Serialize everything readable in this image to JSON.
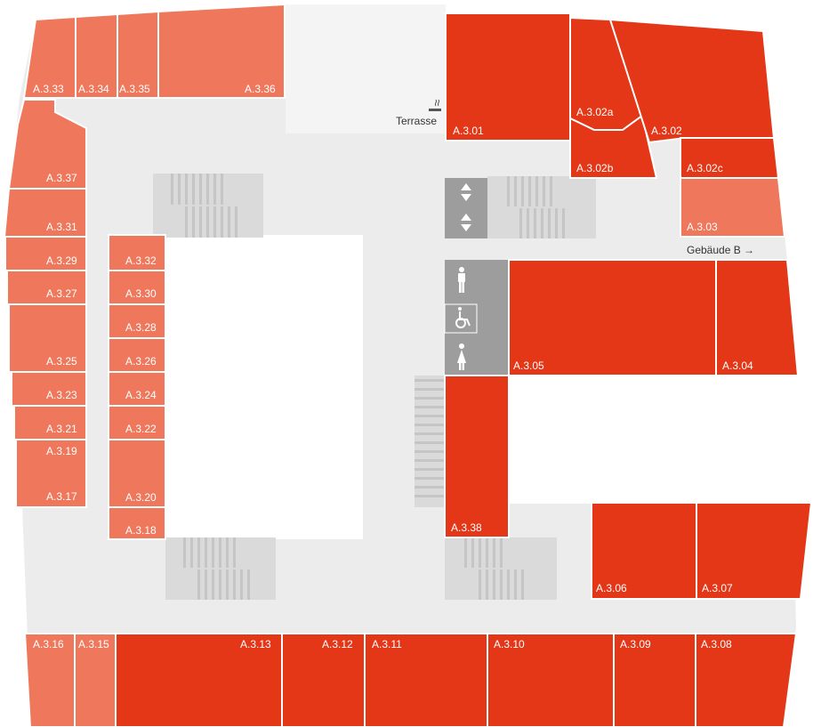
{
  "colors": {
    "corridor": "#ececec",
    "room_light": "#ef775b",
    "room_dark": "#e33718",
    "terrace": "#f4f4f4",
    "stair": "#dadada",
    "stair_step": "#c5c5c5",
    "service": "#9d9d9d",
    "courtyard": "#ffffff"
  },
  "rooms": {
    "a333": "A.3.33",
    "a334": "A.3.34",
    "a335": "A.3.35",
    "a336": "A.3.36",
    "a337": "A.3.37",
    "a331": "A.3.31",
    "a329": "A.3.29",
    "a327": "A.3.27",
    "a325": "A.3.25",
    "a323": "A.3.23",
    "a321": "A.3.21",
    "a319": "A.3.19",
    "a317": "A.3.17",
    "a332": "A.3.32",
    "a330": "A.3.30",
    "a328": "A.3.28",
    "a326": "A.3.26",
    "a324": "A.3.24",
    "a322": "A.3.22",
    "a320": "A.3.20",
    "a318": "A.3.18",
    "a301": "A.3.01",
    "a302a": "A.3.02a",
    "a302b": "A.3.02b",
    "a302": "A.3.02",
    "a302c": "A.3.02c",
    "a303": "A.3.03",
    "a305": "A.3.05",
    "a304": "A.3.04",
    "a338": "A.3.38",
    "a306": "A.3.06",
    "a307": "A.3.07",
    "a316": "A.3.16",
    "a315": "A.3.15",
    "a313": "A.3.13",
    "a312": "A.3.12",
    "a311": "A.3.11",
    "a310": "A.3.10",
    "a309": "A.3.09",
    "a308": "A.3.08"
  },
  "labels": {
    "terrace": "Terrasse",
    "building_b": "Gebäude B →"
  },
  "icons": {
    "elevator": "elevator-icon",
    "men_wc": "men-toilet-icon",
    "accessible_wc": "wheelchair-toilet-icon",
    "women_wc": "women-toilet-icon",
    "smoking": "smoking-icon"
  }
}
